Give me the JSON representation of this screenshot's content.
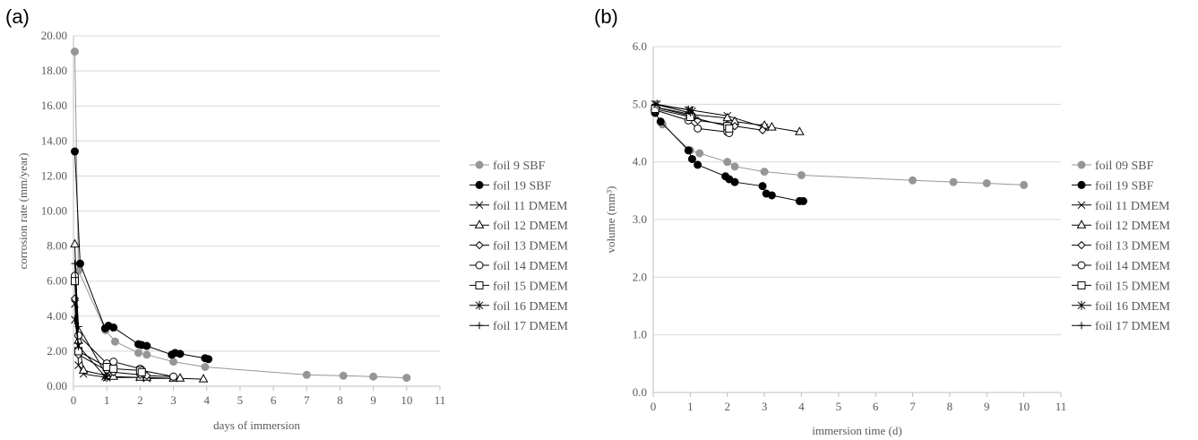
{
  "chart_data": [
    {
      "type": "line",
      "panel": "(a)",
      "title": "",
      "xlabel": "days of immersion",
      "ylabel": "corrosion rate (mm/year)",
      "xlim": [
        0,
        11
      ],
      "ylim": [
        0,
        20
      ],
      "xticks": [
        "0",
        "1",
        "2",
        "3",
        "4",
        "5",
        "6",
        "7",
        "8",
        "9",
        "10",
        "11"
      ],
      "yticks": [
        "0.00",
        "2.00",
        "4.00",
        "6.00",
        "8.00",
        "10.00",
        "12.00",
        "14.00",
        "16.00",
        "18.00",
        "20.00"
      ],
      "grid": "horizontal",
      "legend": "right",
      "series": [
        {
          "name": "foil 9 SBF",
          "marker": "circle-filled",
          "color": "#969696",
          "x": [
            0.04,
            0.15,
            0.96,
            1.25,
            1.95,
            2.2,
            3.0,
            3.95,
            7.0,
            8.1,
            9.0,
            10.0
          ],
          "y": [
            19.1,
            6.6,
            3.2,
            2.55,
            1.9,
            1.8,
            1.4,
            1.1,
            0.65,
            0.6,
            0.55,
            0.48
          ]
        },
        {
          "name": "foil 19 SBF",
          "marker": "circle-filled",
          "color": "#000000",
          "x": [
            0.04,
            0.2,
            0.95,
            1.05,
            1.2,
            1.95,
            2.05,
            2.2,
            2.95,
            3.05,
            3.2,
            3.95,
            4.05
          ],
          "y": [
            13.4,
            7.0,
            3.3,
            3.45,
            3.35,
            2.4,
            2.35,
            2.3,
            1.8,
            1.9,
            1.85,
            1.6,
            1.55
          ]
        },
        {
          "name": "foil 11 DMEM",
          "marker": "x",
          "color": "#000000",
          "x": [
            0.04,
            0.15,
            0.3,
            1.0,
            2.0,
            2.2,
            3.0
          ],
          "y": [
            4.7,
            1.2,
            0.7,
            0.5,
            0.5,
            0.45,
            0.45
          ]
        },
        {
          "name": "foil 12 DMEM",
          "marker": "triangle-open",
          "color": "#000000",
          "x": [
            0.04,
            0.15,
            0.3,
            1.0,
            1.2,
            2.0,
            2.2,
            3.0,
            3.2,
            3.9
          ],
          "y": [
            8.1,
            2.6,
            0.9,
            0.6,
            0.55,
            0.5,
            0.5,
            0.45,
            0.45,
            0.4
          ]
        },
        {
          "name": "foil 13 DMEM",
          "marker": "diamond-open",
          "color": "#000000",
          "x": [
            0.04,
            0.15,
            1.0,
            1.2,
            2.0,
            2.2,
            3.0
          ],
          "y": [
            5.0,
            1.8,
            0.9,
            0.8,
            0.65,
            0.6,
            0.55
          ]
        },
        {
          "name": "foil 14 DMEM",
          "marker": "circle-open",
          "color": "#000000",
          "x": [
            0.04,
            0.15,
            1.0,
            1.2,
            2.0,
            2.05,
            3.0
          ],
          "y": [
            6.3,
            2.9,
            1.3,
            1.4,
            1.0,
            0.9,
            0.55
          ]
        },
        {
          "name": "foil 15 DMEM",
          "marker": "square-open",
          "color": "#000000",
          "x": [
            0.04,
            0.15,
            1.0,
            1.2,
            2.0,
            2.05
          ],
          "y": [
            6.0,
            2.0,
            1.1,
            1.0,
            0.9,
            0.8
          ]
        },
        {
          "name": "foil 16 DMEM",
          "marker": "asterisk",
          "color": "#000000",
          "x": [
            0.04,
            0.15,
            0.95,
            1.0
          ],
          "y": [
            3.8,
            2.3,
            0.55,
            0.5
          ]
        },
        {
          "name": "foil 17 DMEM",
          "marker": "plus",
          "color": "#000000",
          "x": [
            0.04,
            0.15,
            1.0
          ],
          "y": [
            7.0,
            3.4,
            0.6
          ]
        }
      ]
    },
    {
      "type": "line",
      "panel": "(b)",
      "title": "",
      "xlabel": "immersion time (d)",
      "ylabel": "volume (mm³)",
      "xlim": [
        0,
        11
      ],
      "ylim": [
        0,
        6
      ],
      "xticks": [
        "0",
        "1",
        "2",
        "3",
        "4",
        "5",
        "6",
        "7",
        "8",
        "9",
        "10",
        "11"
      ],
      "yticks": [
        "0.0",
        "1.0",
        "2.0",
        "3.0",
        "4.0",
        "5.0",
        "6.0"
      ],
      "grid": "horizontal",
      "legend": "right",
      "series": [
        {
          "name": "foil 09 SBF",
          "marker": "circle-filled",
          "color": "#969696",
          "x": [
            0.05,
            0.25,
            1.0,
            1.25,
            2.0,
            2.2,
            3.0,
            4.0,
            7.0,
            8.1,
            9.0,
            10.0
          ],
          "y": [
            4.85,
            4.65,
            4.2,
            4.15,
            4.0,
            3.92,
            3.83,
            3.77,
            3.68,
            3.65,
            3.63,
            3.6
          ]
        },
        {
          "name": "foil 19 SBF",
          "marker": "circle-filled",
          "color": "#000000",
          "x": [
            0.05,
            0.2,
            0.95,
            1.05,
            1.2,
            1.95,
            2.05,
            2.2,
            2.95,
            3.05,
            3.2,
            3.95,
            4.05
          ],
          "y": [
            4.85,
            4.7,
            4.2,
            4.05,
            3.95,
            3.75,
            3.7,
            3.65,
            3.58,
            3.45,
            3.42,
            3.32,
            3.32
          ]
        },
        {
          "name": "foil 11 DMEM",
          "marker": "x",
          "color": "#000000",
          "x": [
            0.05,
            1.0,
            2.0,
            3.0
          ],
          "y": [
            5.0,
            4.9,
            4.8,
            4.6
          ]
        },
        {
          "name": "foil 12 DMEM",
          "marker": "triangle-open",
          "color": "#000000",
          "x": [
            0.05,
            1.05,
            2.0,
            2.2,
            3.0,
            3.2,
            3.95
          ],
          "y": [
            4.95,
            4.82,
            4.76,
            4.7,
            4.63,
            4.6,
            4.52
          ]
        },
        {
          "name": "foil 13 DMEM",
          "marker": "diamond-open",
          "color": "#000000",
          "x": [
            0.05,
            1.0,
            1.2,
            2.0,
            2.2,
            2.95
          ],
          "y": [
            4.95,
            4.8,
            4.72,
            4.65,
            4.62,
            4.55
          ]
        },
        {
          "name": "foil 14 DMEM",
          "marker": "circle-open",
          "color": "#000000",
          "x": [
            0.05,
            0.95,
            1.2,
            2.0,
            2.05
          ],
          "y": [
            4.9,
            4.72,
            4.58,
            4.52,
            4.5
          ]
        },
        {
          "name": "foil 15 DMEM",
          "marker": "square-open",
          "color": "#000000",
          "x": [
            0.05,
            1.0,
            2.0,
            2.05
          ],
          "y": [
            4.92,
            4.78,
            4.62,
            4.58
          ]
        },
        {
          "name": "foil 16 DMEM",
          "marker": "asterisk",
          "color": "#000000",
          "x": [
            0.1,
            0.95,
            1.05
          ],
          "y": [
            5.0,
            4.9,
            4.88
          ]
        },
        {
          "name": "foil 17 DMEM",
          "marker": "plus",
          "color": "#000000",
          "x": [
            0.05,
            1.0
          ],
          "y": [
            5.0,
            4.85
          ]
        }
      ]
    }
  ]
}
